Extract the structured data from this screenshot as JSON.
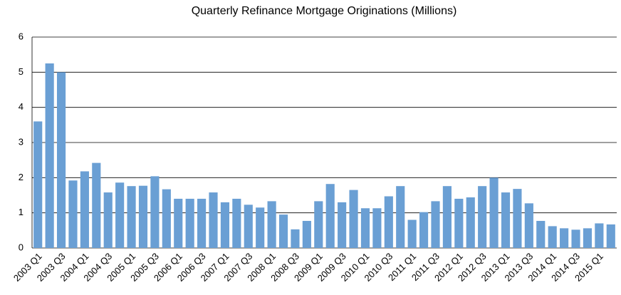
{
  "chart_data": {
    "type": "bar",
    "title": "Quarterly Refinance Mortgage Originations (Millions)",
    "categories": [
      "2003 Q1",
      null,
      "2003 Q3",
      null,
      "2004 Q1",
      null,
      "2004 Q3",
      null,
      "2005 Q1",
      null,
      "2005 Q3",
      null,
      "2006 Q1",
      null,
      "2006 Q3",
      null,
      "2007 Q1",
      null,
      "2007 Q3",
      null,
      "2008 Q1",
      null,
      "2008 Q3",
      null,
      "2009 Q1",
      null,
      "2009 Q3",
      null,
      "2010 Q1",
      null,
      "2010 Q3",
      null,
      "2011 Q1",
      null,
      "2011 Q3",
      null,
      "2012 Q1",
      null,
      "2012 Q3",
      null,
      "2013 Q1",
      null,
      "2013 Q3",
      null,
      "2014 Q1",
      null,
      "2014 Q3",
      null,
      "2015 Q1",
      null
    ],
    "values": [
      3.6,
      5.25,
      5.0,
      1.92,
      2.18,
      2.42,
      1.58,
      1.86,
      1.76,
      1.77,
      2.04,
      1.67,
      1.4,
      1.4,
      1.4,
      1.58,
      1.3,
      1.4,
      1.23,
      1.15,
      1.33,
      0.95,
      0.53,
      0.77,
      1.33,
      1.82,
      1.3,
      1.65,
      1.13,
      1.13,
      1.47,
      1.76,
      0.8,
      1.02,
      1.33,
      1.76,
      1.4,
      1.44,
      1.76,
      2.0,
      1.58,
      1.68,
      1.27,
      0.77,
      0.62,
      0.56,
      0.52,
      0.56,
      0.7,
      0.67
    ],
    "color": "#6a9fd4",
    "ylim": [
      0,
      6
    ],
    "yticks": [
      0,
      1,
      2,
      3,
      4,
      5,
      6
    ],
    "grid": true
  }
}
